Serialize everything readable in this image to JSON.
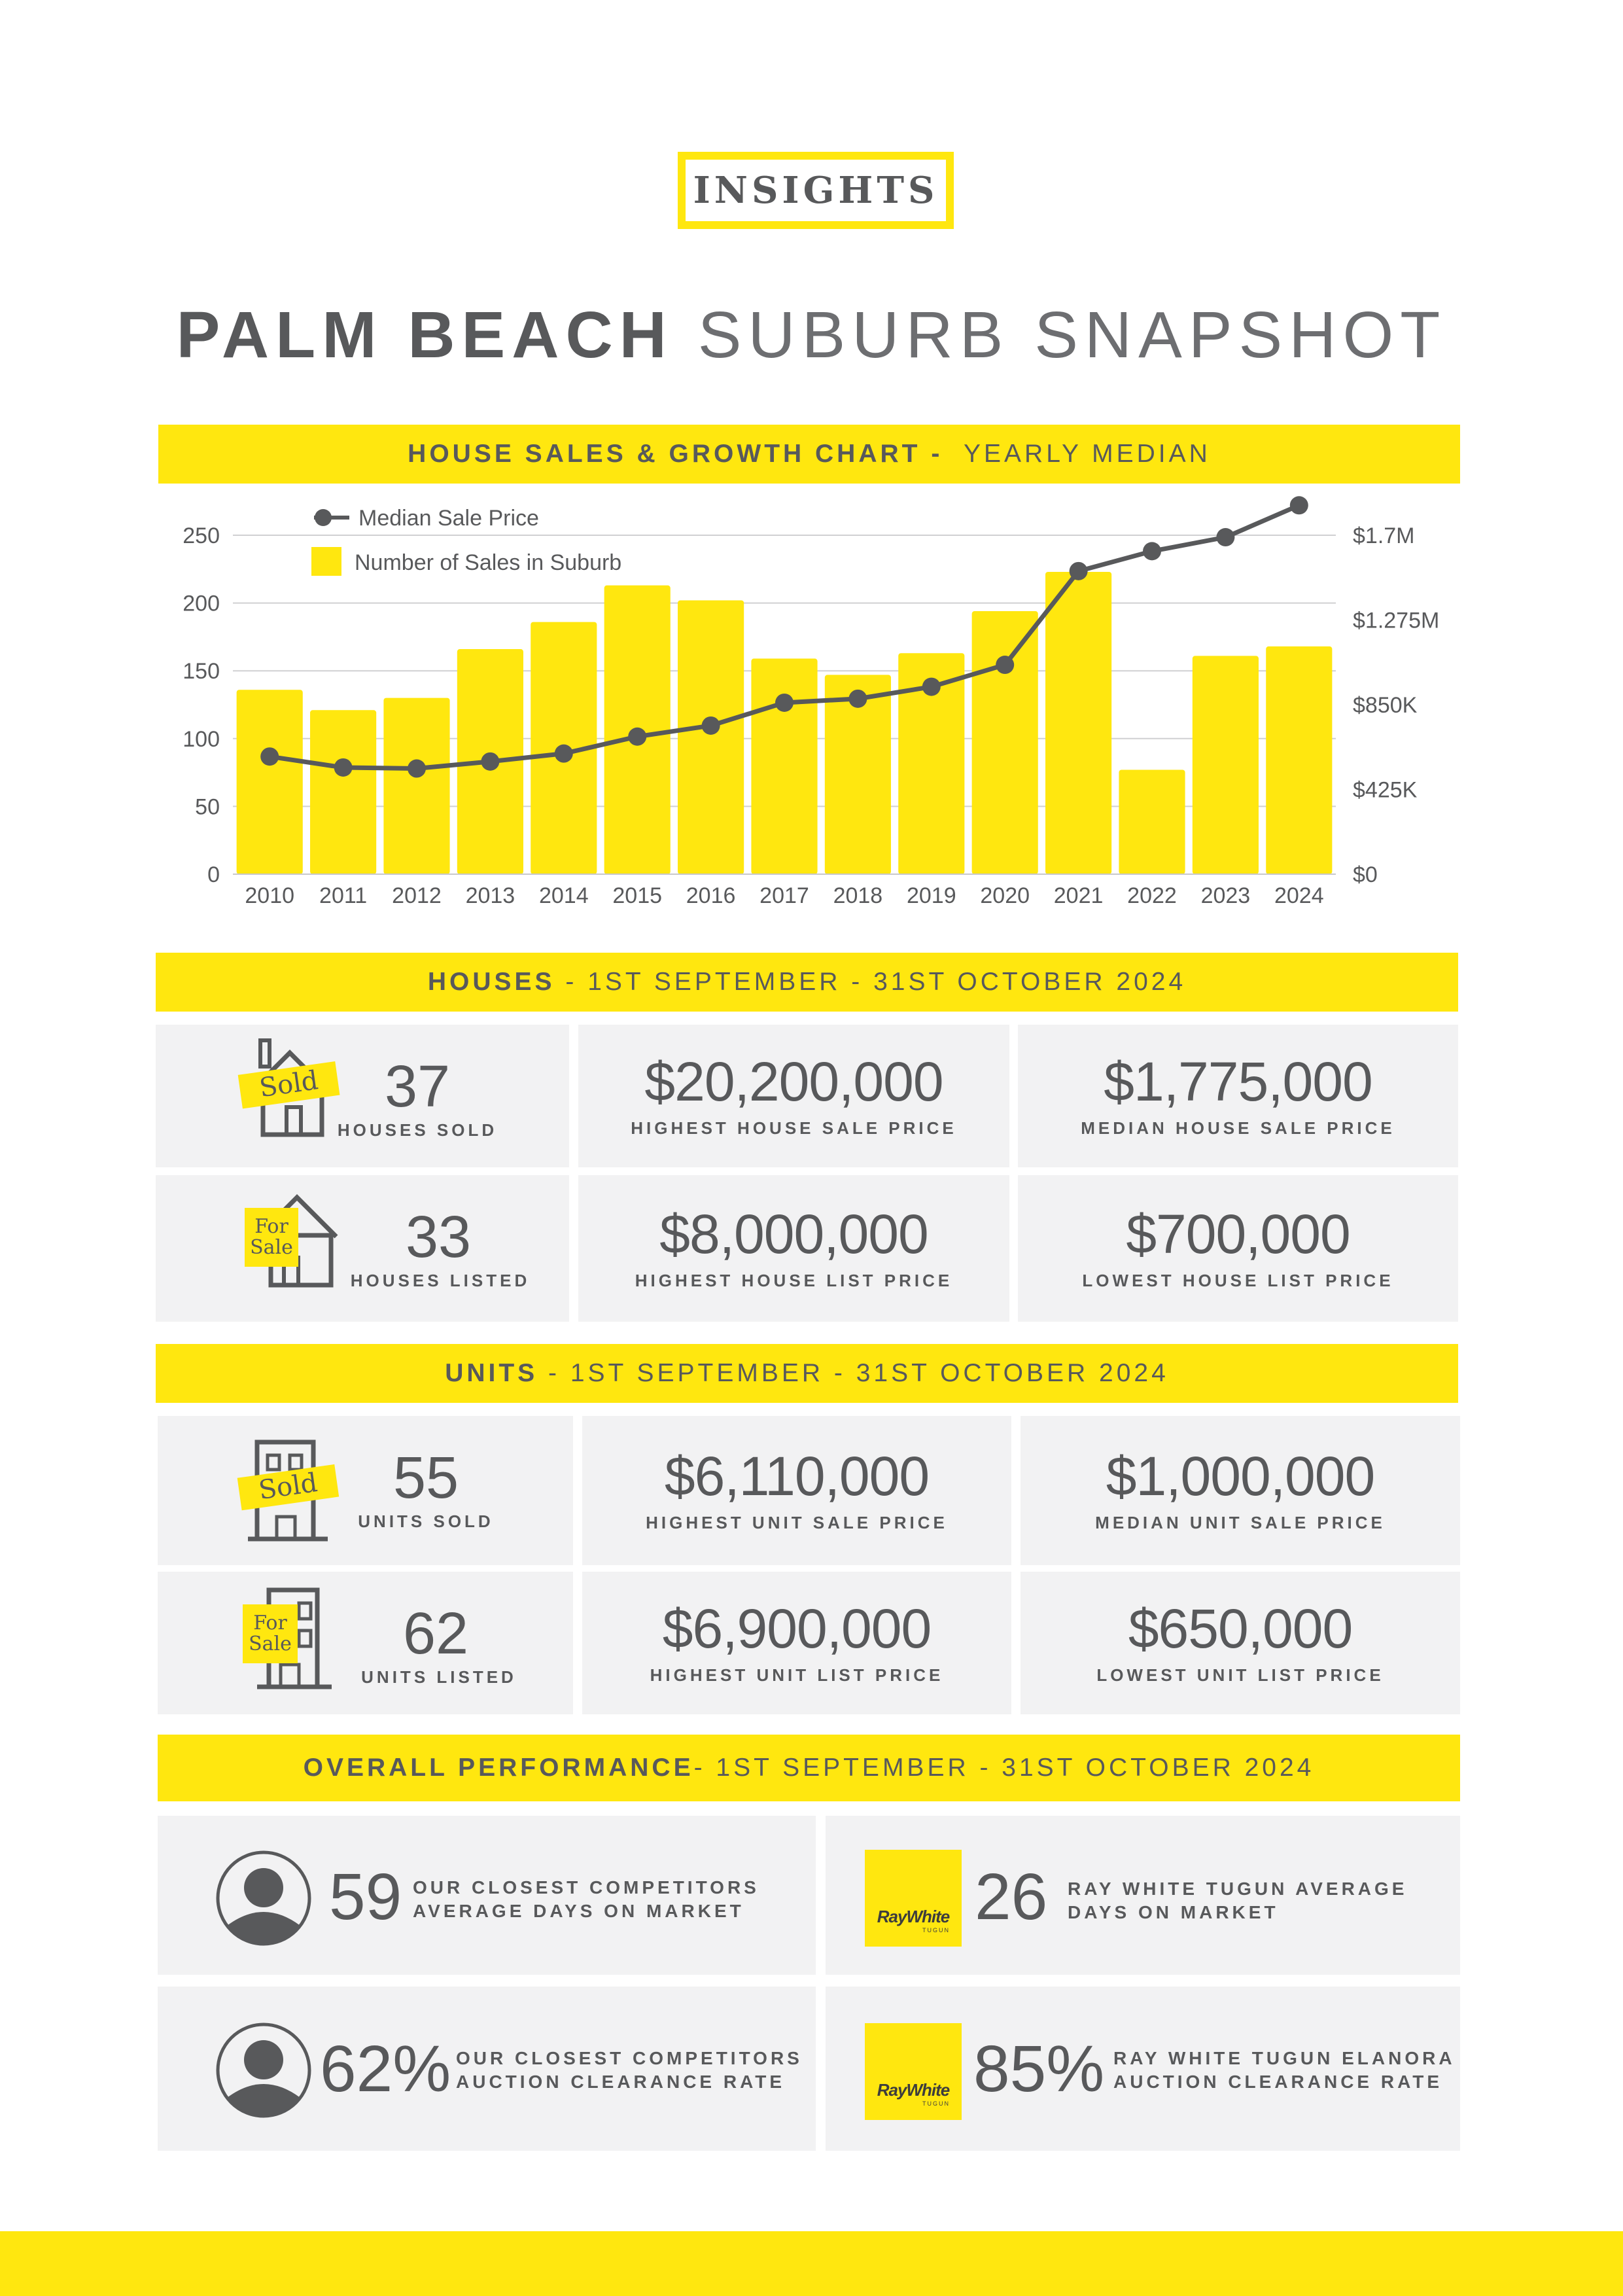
{
  "badge": "INSIGHTS",
  "title": {
    "bold": "PALM BEACH",
    "light": "SUBURB SNAPSHOT"
  },
  "chart_header": {
    "bold": "HOUSE SALES & GROWTH CHART -",
    "light": "YEARLY MEDIAN"
  },
  "chart_data": {
    "type": "bar",
    "categories": [
      "2010",
      "2011",
      "2012",
      "2013",
      "2014",
      "2015",
      "2016",
      "2017",
      "2018",
      "2019",
      "2020",
      "2021",
      "2022",
      "2023",
      "2024"
    ],
    "series": [
      {
        "name": "Number of Sales in Suburb",
        "type": "bar",
        "axis": "left",
        "values": [
          136,
          121,
          130,
          166,
          186,
          213,
          202,
          159,
          147,
          163,
          194,
          223,
          77,
          161,
          168
        ]
      },
      {
        "name": "Median Sale Price",
        "type": "line",
        "axis": "right",
        "values": [
          590000,
          535000,
          530000,
          565000,
          605000,
          690000,
          745000,
          860000,
          880000,
          940000,
          1050000,
          1520000,
          1620000,
          1690000,
          1850000
        ]
      }
    ],
    "left_axis": {
      "ticks": [
        0,
        50,
        100,
        150,
        200,
        250
      ],
      "range": [
        0,
        250
      ]
    },
    "right_axis": {
      "tick_labels": [
        "$0",
        "$425K",
        "$850K",
        "$1.275M",
        "$1.7M"
      ],
      "range": [
        0,
        1700000
      ]
    },
    "legend": [
      "Median Sale Price",
      "Number of Sales in Suburb"
    ],
    "legend_position": "top-left",
    "grid": true
  },
  "houses": {
    "header": {
      "bold": "HOUSES",
      "light": "- 1ST SEPTEMBER - 31ST OCTOBER 2024"
    },
    "sold": {
      "tag": "Sold",
      "value": "37",
      "label": "HOUSES SOLD"
    },
    "listed": {
      "tag_line1": "For",
      "tag_line2": "Sale",
      "value": "33",
      "label": "HOUSES LISTED"
    },
    "highest_sale": {
      "value": "$20,200,000",
      "label": "HIGHEST HOUSE SALE PRICE"
    },
    "median_sale": {
      "value": "$1,775,000",
      "label": "MEDIAN HOUSE SALE PRICE"
    },
    "highest_list": {
      "value": "$8,000,000",
      "label": "HIGHEST HOUSE LIST PRICE"
    },
    "lowest_list": {
      "value": "$700,000",
      "label": "LOWEST HOUSE LIST PRICE"
    }
  },
  "units": {
    "header": {
      "bold": "UNITS",
      "light": "- 1ST SEPTEMBER - 31ST OCTOBER 2024"
    },
    "sold": {
      "tag": "Sold",
      "value": "55",
      "label": "UNITS SOLD"
    },
    "listed": {
      "tag_line1": "For",
      "tag_line2": "Sale",
      "value": "62",
      "label": "UNITS LISTED"
    },
    "highest_sale": {
      "value": "$6,110,000",
      "label": "HIGHEST UNIT SALE PRICE"
    },
    "median_sale": {
      "value": "$1,000,000",
      "label": "MEDIAN UNIT SALE PRICE"
    },
    "highest_list": {
      "value": "$6,900,000",
      "label": "HIGHEST UNIT LIST PRICE"
    },
    "lowest_list": {
      "value": "$650,000",
      "label": "LOWEST UNIT LIST PRICE"
    }
  },
  "overall": {
    "header": {
      "bold": "OVERALL PERFORMANCE",
      "light": "- 1ST SEPTEMBER - 31ST OCTOBER 2024"
    },
    "competitor_days": {
      "value": "59",
      "label_line1": "OUR CLOSEST COMPETITORS",
      "label_line2": "AVERAGE DAYS ON MARKET",
      "icon": "person-icon"
    },
    "raywhite_days": {
      "value": "26",
      "label_line1": "RAY WHITE TUGUN AVERAGE",
      "label_line2": "DAYS ON MARKET",
      "icon": "ray-white-logo"
    },
    "competitor_clearance": {
      "value": "62%",
      "label_line1": "OUR CLOSEST COMPETITORS",
      "label_line2": "AUCTION CLEARANCE RATE",
      "icon": "person-icon"
    },
    "raywhite_clearance": {
      "value": "85%",
      "label_line1": "RAY WHITE TUGUN ELANORA",
      "label_line2": "AUCTION CLEARANCE RATE",
      "icon": "ray-white-logo"
    }
  },
  "logo": {
    "name": "RayWhite",
    "sub": "TUGUN"
  },
  "colors": {
    "accent": "#ffe70f",
    "text": "#58595b",
    "cell_bg": "#f2f2f3",
    "line": "#58595b"
  }
}
